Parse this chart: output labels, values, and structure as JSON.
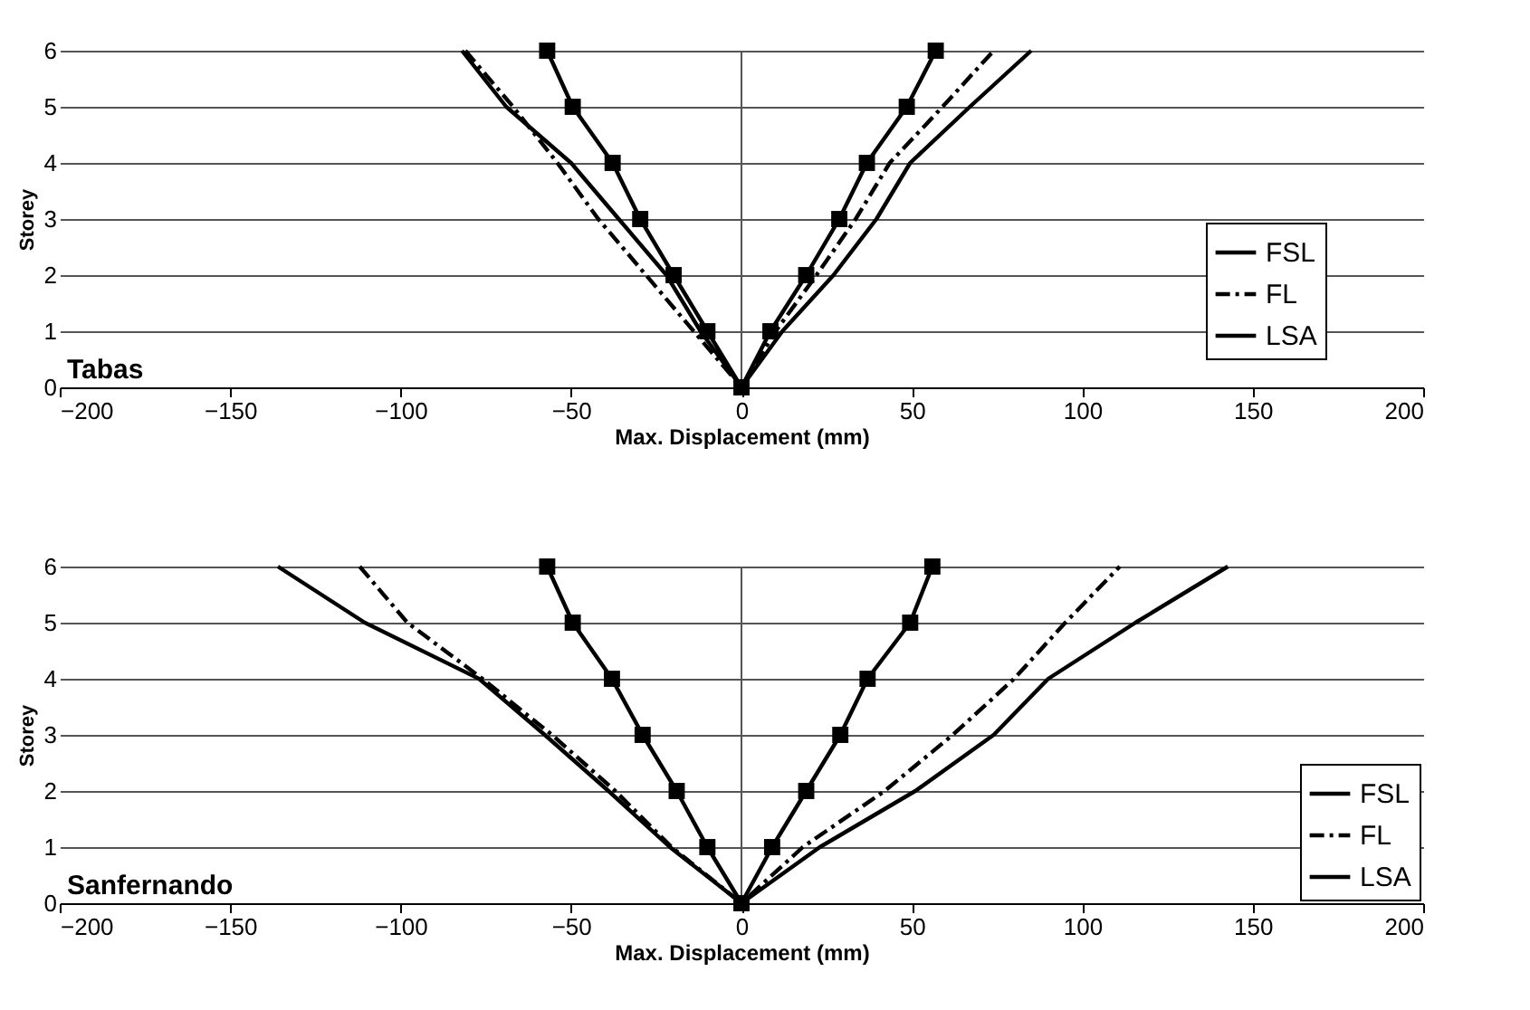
{
  "chart_data": [
    {
      "type": "line",
      "title": "Tabas",
      "xlabel": "Max. Displacement (mm)",
      "ylabel": "Storey",
      "xlim": [
        -200,
        200
      ],
      "xticks": [
        -200,
        -150,
        -100,
        -50,
        0,
        50,
        100,
        150,
        200
      ],
      "ylim": [
        0,
        6
      ],
      "yticks": [
        0,
        1,
        2,
        3,
        4,
        5,
        6
      ],
      "grid": "y",
      "legend": "right",
      "ref_lines": [
        {
          "axis": "x",
          "value": 0
        }
      ],
      "series": [
        {
          "name": "FSL",
          "color": "#000000",
          "line_style": "solid",
          "marker": "none",
          "x": [
            -82,
            -69,
            -50,
            -36,
            -22,
            -12,
            0,
            12,
            27,
            39.6,
            49.5,
            67,
            85
          ],
          "values": [
            6,
            5,
            4,
            3,
            2,
            1,
            0,
            1,
            2,
            3,
            4,
            5,
            6
          ]
        },
        {
          "name": "FL",
          "color": "#000000",
          "line_style": "dashed",
          "marker": "none",
          "x": [
            -81,
            -67,
            -54,
            -42,
            -28,
            -14,
            0,
            10,
            22,
            33.5,
            43.5,
            59,
            74
          ],
          "values": [
            6,
            5,
            4,
            3,
            2,
            1,
            0,
            1,
            2,
            3,
            4,
            5,
            6
          ]
        },
        {
          "name": "LSA",
          "color": "#000000",
          "line_style": "solid",
          "marker": "square",
          "x": [
            -57,
            -49.5,
            -37.8,
            -29.7,
            -19.9,
            -10,
            0,
            8.5,
            19,
            28.7,
            36.8,
            48.5,
            57
          ],
          "values": [
            6,
            5,
            4,
            3,
            2,
            1,
            0,
            1,
            2,
            3,
            4,
            5,
            6
          ]
        }
      ]
    },
    {
      "type": "line",
      "title": "Sanfernando",
      "xlabel": "Max. Displacement (mm)",
      "ylabel": "Storey",
      "xlim": [
        -200,
        200
      ],
      "xticks": [
        -200,
        -150,
        -100,
        -50,
        0,
        50,
        100,
        150,
        200
      ],
      "ylim": [
        0,
        6
      ],
      "yticks": [
        0,
        1,
        2,
        3,
        4,
        5,
        6
      ],
      "grid": "y",
      "legend": "bottom right",
      "ref_lines": [
        {
          "axis": "x",
          "value": 0
        }
      ],
      "series": [
        {
          "name": "FSL",
          "color": "#000000",
          "line_style": "solid",
          "marker": "none",
          "x": [
            -136,
            -110.5,
            -77,
            -57.7,
            -39,
            -21,
            0,
            23,
            51,
            74,
            90,
            115.6,
            142.7
          ],
          "values": [
            6,
            5,
            4,
            3,
            2,
            1,
            0,
            1,
            2,
            3,
            4,
            5,
            6
          ]
        },
        {
          "name": "FL",
          "color": "#000000",
          "line_style": "dashed",
          "marker": "none",
          "x": [
            -112,
            -98,
            -76,
            -55.6,
            -37,
            -20.5,
            0,
            18,
            42,
            62,
            80,
            95,
            111
          ],
          "values": [
            6,
            5,
            4,
            3,
            2,
            1,
            0,
            1,
            2,
            3,
            4,
            5,
            6
          ]
        },
        {
          "name": "LSA",
          "color": "#000000",
          "line_style": "solid",
          "marker": "square",
          "x": [
            -57,
            -49.5,
            -38,
            -29,
            -19,
            -10,
            0,
            9,
            19,
            29,
            37,
            49.5,
            56
          ],
          "values": [
            6,
            5,
            4,
            3,
            2,
            1,
            0,
            1,
            2,
            3,
            4,
            5,
            6
          ]
        }
      ]
    }
  ]
}
